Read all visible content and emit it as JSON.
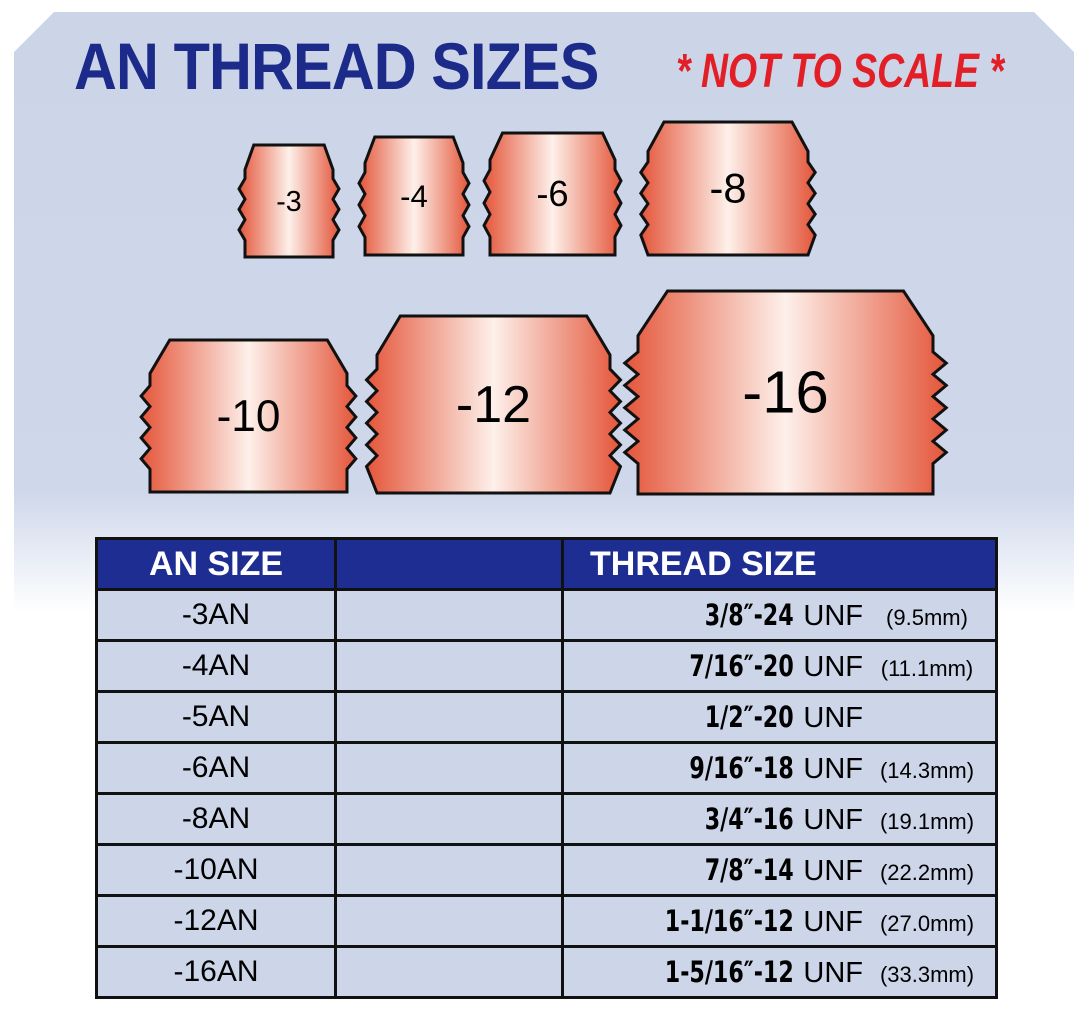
{
  "title": "AN THREAD SIZES",
  "note": "* NOT TO SCALE *",
  "colors": {
    "title": "#1c2a8a",
    "note": "#e21f26",
    "header_bg": "#1d2d92",
    "panel": "#ccd4e8",
    "fitting_edge": "#e4563a",
    "fitting_center": "#fdf0ea"
  },
  "fittings": [
    "-3",
    "-4",
    "-6",
    "-8",
    "-10",
    "-12",
    "-16"
  ],
  "table": {
    "headers": [
      "AN SIZE",
      "",
      "THREAD SIZE"
    ],
    "rows": [
      {
        "an": "-3AN",
        "thread": "3/8″-24",
        "unit": "UNF",
        "mm": "(9.5mm)"
      },
      {
        "an": "-4AN",
        "thread": "7/16″-20",
        "unit": "UNF",
        "mm": "(11.1mm)"
      },
      {
        "an": "-5AN",
        "thread": "1/2″-20",
        "unit": "UNF",
        "mm": ""
      },
      {
        "an": "-6AN",
        "thread": "9/16″-18",
        "unit": "UNF",
        "mm": "(14.3mm)"
      },
      {
        "an": "-8AN",
        "thread": "3/4″-16",
        "unit": "UNF",
        "mm": "(19.1mm)"
      },
      {
        "an": "-10AN",
        "thread": "7/8″-14",
        "unit": "UNF",
        "mm": "(22.2mm)"
      },
      {
        "an": "-12AN",
        "thread": "1-1/16″-12",
        "unit": "UNF",
        "mm": "(27.0mm)"
      },
      {
        "an": "-16AN",
        "thread": "1-5/16″-12",
        "unit": "UNF",
        "mm": "(33.3mm)"
      }
    ]
  }
}
